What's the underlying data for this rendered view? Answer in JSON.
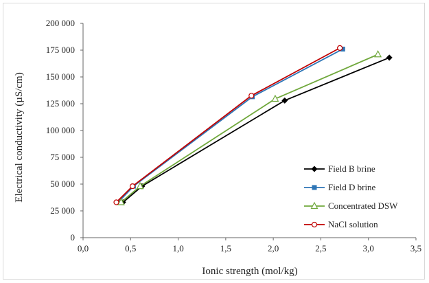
{
  "chart_data": {
    "type": "line",
    "title": "",
    "xlabel": "Ionic strength (mol/kg)",
    "ylabel": "Electrical conductivity (µS/cm)",
    "xlim": [
      0,
      3.5
    ],
    "ylim": [
      0,
      200000
    ],
    "x_ticks": [
      "0,0",
      "0,5",
      "1,0",
      "1,5",
      "2,0",
      "2,5",
      "3,0",
      "3,5"
    ],
    "y_ticks": [
      "0",
      "25 000",
      "50 000",
      "75 000",
      "100 000",
      "125 000",
      "150 000",
      "175 000",
      "200 000"
    ],
    "grid": false,
    "legend_position": "bottom-right",
    "series": [
      {
        "name": "Field B brine",
        "color": "#000000",
        "marker": "diamond",
        "x": [
          0.42,
          0.62,
          2.12,
          3.22
        ],
        "y": [
          33000,
          48000,
          128000,
          168000
        ]
      },
      {
        "name": "Field D brine",
        "color": "#2e75b6",
        "marker": "square",
        "x": [
          0.37,
          0.53,
          1.78,
          2.73
        ],
        "y": [
          33000,
          48000,
          131500,
          176000
        ]
      },
      {
        "name": "Concentrated DSW",
        "color": "#70a83c",
        "marker": "triangle-open",
        "x": [
          0.4,
          0.6,
          2.02,
          3.1
        ],
        "y": [
          33000,
          48000,
          129500,
          171000
        ]
      },
      {
        "name": "NaCl solution",
        "color": "#c00000",
        "marker": "circle-open",
        "x": [
          0.35,
          0.52,
          1.77,
          2.7
        ],
        "y": [
          33000,
          48000,
          132500,
          177000
        ]
      }
    ]
  }
}
